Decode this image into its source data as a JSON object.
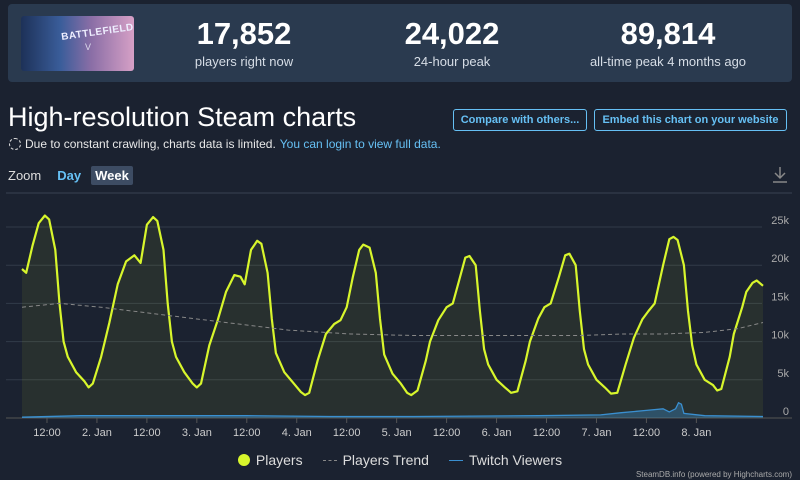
{
  "game": {
    "logo_text": "BATTLEFIELD",
    "logo_sub": "V"
  },
  "stats": [
    {
      "value": "17,852",
      "label": "players right now"
    },
    {
      "value": "24,022",
      "label": "24-hour peak"
    },
    {
      "value": "89,814",
      "label": "all-time peak 4 months ago"
    }
  ],
  "title": "High-resolution Steam charts",
  "buttons": {
    "compare": "Compare with others...",
    "embed": "Embed this chart on your website"
  },
  "notice": {
    "text": "Due to constant crawling, charts data is limited.",
    "link": "You can login to view full data."
  },
  "zoom": {
    "label": "Zoom",
    "options": [
      "Day",
      "Week"
    ],
    "active": "Week"
  },
  "legend": [
    "Players",
    "Players Trend",
    "Twitch Viewers"
  ],
  "credit": "SteamDB.info (powered by Highcharts.com)",
  "colors": {
    "players": "#d8f62c",
    "trend": "#888888",
    "twitch": "#3a8fd0",
    "accent": "#66c0f4"
  },
  "chart_data": {
    "type": "line",
    "x_ticks": [
      "12:00",
      "2. Jan",
      "12:00",
      "3. Jan",
      "12:00",
      "4. Jan",
      "12:00",
      "5. Jan",
      "12:00",
      "6. Jan",
      "12:00",
      "7. Jan",
      "12:00",
      "8. Jan"
    ],
    "y_ticks": [
      "0",
      "5k",
      "10k",
      "15k",
      "20k",
      "25k"
    ],
    "ylim": [
      0,
      27000
    ],
    "x_range_hours": [
      6,
      178
    ],
    "series": [
      {
        "name": "Players",
        "points": [
          [
            6,
            19500
          ],
          [
            7,
            19000
          ],
          [
            8.5,
            22500
          ],
          [
            10,
            25500
          ],
          [
            11.5,
            26500
          ],
          [
            12.5,
            26000
          ],
          [
            14,
            22000
          ],
          [
            15,
            15000
          ],
          [
            16,
            10000
          ],
          [
            17,
            8000
          ],
          [
            19,
            6000
          ],
          [
            21,
            4800
          ],
          [
            22,
            4000
          ],
          [
            23,
            4500
          ],
          [
            25,
            8000
          ],
          [
            27,
            12500
          ],
          [
            29,
            17500
          ],
          [
            31,
            20500
          ],
          [
            33,
            21300
          ],
          [
            34.5,
            20300
          ],
          [
            36,
            25300
          ],
          [
            37.5,
            26300
          ],
          [
            38.5,
            25800
          ],
          [
            40,
            22000
          ],
          [
            41,
            15000
          ],
          [
            42,
            10000
          ],
          [
            43,
            8000
          ],
          [
            45,
            6000
          ],
          [
            47,
            4500
          ],
          [
            48,
            4000
          ],
          [
            49,
            4500
          ],
          [
            51,
            9500
          ],
          [
            53,
            12800
          ],
          [
            55,
            16500
          ],
          [
            57,
            18700
          ],
          [
            58.5,
            18500
          ],
          [
            59.5,
            17500
          ],
          [
            61,
            22000
          ],
          [
            62.5,
            23200
          ],
          [
            63.5,
            22800
          ],
          [
            65,
            19000
          ],
          [
            66,
            13000
          ],
          [
            67,
            8500
          ],
          [
            69,
            6000
          ],
          [
            71,
            4700
          ],
          [
            73,
            3400
          ],
          [
            74,
            3000
          ],
          [
            75,
            3300
          ],
          [
            77,
            7500
          ],
          [
            79,
            11000
          ],
          [
            81,
            12300
          ],
          [
            82.5,
            12800
          ],
          [
            84,
            14500
          ],
          [
            85.5,
            18500
          ],
          [
            87,
            22000
          ],
          [
            88,
            22700
          ],
          [
            89.5,
            22300
          ],
          [
            91,
            19000
          ],
          [
            92,
            13000
          ],
          [
            93,
            8300
          ],
          [
            95,
            5800
          ],
          [
            97,
            4500
          ],
          [
            98.5,
            3300
          ],
          [
            99.5,
            3000
          ],
          [
            101,
            3600
          ],
          [
            103,
            7500
          ],
          [
            104,
            10000
          ],
          [
            106,
            12800
          ],
          [
            108,
            14500
          ],
          [
            109.5,
            15000
          ],
          [
            111,
            18000
          ],
          [
            112.5,
            21000
          ],
          [
            113.5,
            21200
          ],
          [
            115,
            20000
          ],
          [
            116,
            14000
          ],
          [
            117,
            9000
          ],
          [
            118,
            7000
          ],
          [
            120,
            5000
          ],
          [
            122,
            4000
          ],
          [
            123.5,
            3300
          ],
          [
            125,
            3500
          ],
          [
            127,
            7500
          ],
          [
            128,
            10000
          ],
          [
            130,
            13000
          ],
          [
            131.5,
            14500
          ],
          [
            133,
            15000
          ],
          [
            135,
            18500
          ],
          [
            136.5,
            21300
          ],
          [
            137.5,
            21500
          ],
          [
            139,
            20000
          ],
          [
            140,
            14000
          ],
          [
            141,
            9000
          ],
          [
            142,
            7000
          ],
          [
            144,
            5000
          ],
          [
            146,
            4000
          ],
          [
            147.5,
            3200
          ],
          [
            149,
            3300
          ],
          [
            151,
            7000
          ],
          [
            153,
            10500
          ],
          [
            155,
            12900
          ],
          [
            156.5,
            14000
          ],
          [
            158,
            15000
          ],
          [
            160,
            20000
          ],
          [
            161.5,
            23400
          ],
          [
            162.5,
            23700
          ],
          [
            163.5,
            23300
          ],
          [
            165,
            20000
          ],
          [
            166,
            14000
          ],
          [
            167,
            9500
          ],
          [
            168,
            7000
          ],
          [
            170,
            5000
          ],
          [
            172,
            4300
          ],
          [
            173,
            3600
          ],
          [
            174,
            3800
          ],
          [
            176,
            8000
          ],
          [
            177,
            11000
          ],
          [
            179,
            14500
          ],
          [
            180,
            16500
          ],
          [
            181.5,
            17700
          ],
          [
            182.5,
            18000
          ],
          [
            184,
            17300
          ]
        ]
      },
      {
        "name": "Players Trend",
        "points": [
          [
            6,
            14500
          ],
          [
            15,
            15000
          ],
          [
            25,
            14500
          ],
          [
            40,
            13500
          ],
          [
            55,
            12500
          ],
          [
            70,
            11500
          ],
          [
            85,
            11000
          ],
          [
            100,
            10800
          ],
          [
            120,
            10800
          ],
          [
            140,
            10800
          ],
          [
            150,
            11000
          ],
          [
            160,
            11000
          ],
          [
            170,
            11200
          ],
          [
            178,
            11700
          ],
          [
            184,
            12500
          ]
        ]
      },
      {
        "name": "Twitch Viewers",
        "points": [
          [
            6,
            100
          ],
          [
            20,
            300
          ],
          [
            40,
            300
          ],
          [
            60,
            300
          ],
          [
            80,
            200
          ],
          [
            100,
            200
          ],
          [
            130,
            300
          ],
          [
            145,
            400
          ],
          [
            150,
            700
          ],
          [
            156,
            1000
          ],
          [
            160,
            1200
          ],
          [
            161.5,
            800
          ],
          [
            163,
            1200
          ],
          [
            163.7,
            2000
          ],
          [
            164.4,
            1800
          ],
          [
            165,
            600
          ],
          [
            170,
            300
          ],
          [
            184,
            200
          ]
        ]
      }
    ]
  }
}
